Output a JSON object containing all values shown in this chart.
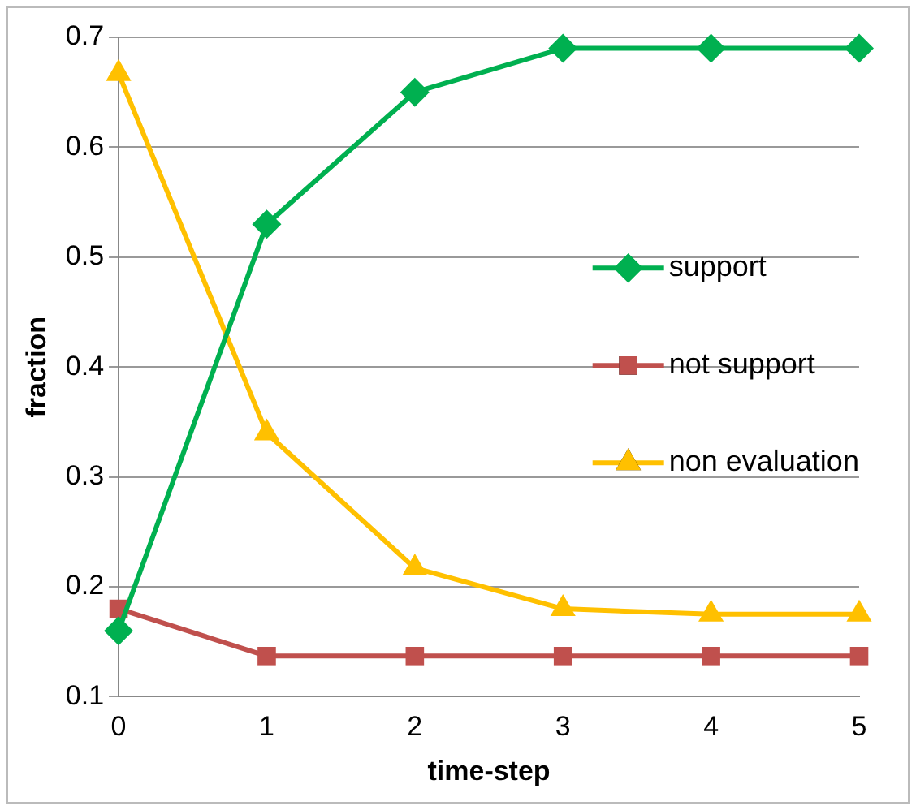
{
  "chart_data": {
    "type": "line",
    "xlabel": "time-step",
    "ylabel": "fraction",
    "x": [
      0,
      1,
      2,
      3,
      4,
      5
    ],
    "series": [
      {
        "name": "support",
        "color": "#00b050",
        "marker": "diamond",
        "values": [
          0.16,
          0.53,
          0.65,
          0.69,
          0.69,
          0.69
        ]
      },
      {
        "name": "not support",
        "color": "#c0504d",
        "marker": "square",
        "values": [
          0.18,
          0.137,
          0.137,
          0.137,
          0.137,
          0.137
        ]
      },
      {
        "name": "non evaluation",
        "color": "#ffc000",
        "marker": "triangle",
        "values": [
          0.667,
          0.34,
          0.217,
          0.18,
          0.175,
          0.175
        ]
      }
    ],
    "xlim": [
      0,
      5
    ],
    "xticks": [
      0,
      1,
      2,
      3,
      4,
      5
    ],
    "ylim": [
      0.1,
      0.7
    ],
    "yticks": [
      0.1,
      0.2,
      0.3,
      0.4,
      0.5,
      0.6,
      0.7
    ],
    "grid": "y",
    "legend": "right"
  }
}
